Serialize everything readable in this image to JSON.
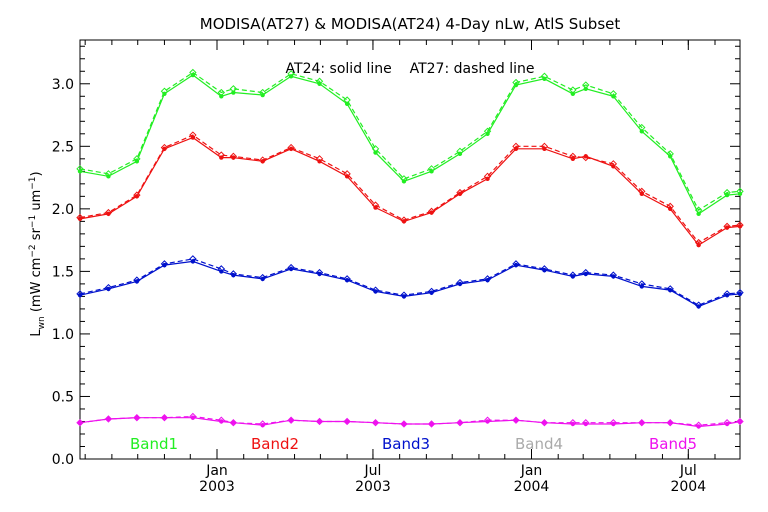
{
  "chart_data": {
    "type": "line",
    "title": "MODISA(AT27) & MODISA(AT24) 4-Day nLw, AtlS Subset",
    "annotation": "AT24: solid line    AT27: dashed line",
    "ylabel": "L_wn (mW cm^-2 sr^-1 um^-1)",
    "ylabel_parts": {
      "main": "L",
      "sub": "wn",
      "unit": "(mW cm",
      "e1": "−2",
      "mid1": " sr",
      "e2": "−1",
      "mid2": " um",
      "e3": "−1",
      "end": ")"
    },
    "ylim": [
      0,
      3.35
    ],
    "yticks": [
      0.0,
      0.5,
      1.0,
      1.5,
      2.0,
      2.5,
      3.0
    ],
    "ytick_labels": [
      "0.0",
      "0.5",
      "1.0",
      "1.5",
      "2.0",
      "2.5",
      "3.0"
    ],
    "xlim": [
      "2002-07-26",
      "2004-08-30"
    ],
    "xtick_labels": [
      {
        "date": "2003-01-01",
        "month": "Jan",
        "year": "2003"
      },
      {
        "date": "2003-07-01",
        "month": "Jul",
        "year": "2003"
      },
      {
        "date": "2004-01-01",
        "month": "Jan",
        "year": "2004"
      },
      {
        "date": "2004-07-01",
        "month": "Jul",
        "year": "2004"
      }
    ],
    "x": [
      "2002-07-26",
      "2002-08-28",
      "2002-09-30",
      "2002-11-01",
      "2002-12-04",
      "2003-01-06",
      "2003-01-20",
      "2003-02-23",
      "2003-03-28",
      "2003-04-30",
      "2003-06-01",
      "2003-07-04",
      "2003-08-06",
      "2003-09-07",
      "2003-10-10",
      "2003-11-11",
      "2003-12-14",
      "2004-01-16",
      "2004-02-18",
      "2004-03-04",
      "2004-04-05",
      "2004-05-08",
      "2004-06-10",
      "2004-07-13",
      "2004-08-15",
      "2004-08-30"
    ],
    "series": [
      {
        "name": "Band1",
        "color": "#22ee22",
        "dashed": [
          2.32,
          2.28,
          2.4,
          2.94,
          3.09,
          2.93,
          2.96,
          2.93,
          3.08,
          3.02,
          2.87,
          2.48,
          2.24,
          2.32,
          2.46,
          2.62,
          3.01,
          3.06,
          2.95,
          2.99,
          2.92,
          2.65,
          2.44,
          1.99,
          2.13,
          2.14
        ],
        "solid": [
          2.3,
          2.26,
          2.38,
          2.92,
          3.07,
          2.9,
          2.93,
          2.91,
          3.06,
          3.0,
          2.84,
          2.45,
          2.22,
          2.3,
          2.44,
          2.6,
          2.99,
          3.04,
          2.92,
          2.96,
          2.9,
          2.62,
          2.42,
          1.96,
          2.11,
          2.12
        ]
      },
      {
        "name": "Band2",
        "color": "#ee1111",
        "dashed": [
          1.93,
          1.97,
          2.11,
          2.49,
          2.59,
          2.43,
          2.42,
          2.39,
          2.49,
          2.4,
          2.28,
          2.03,
          1.91,
          1.98,
          2.13,
          2.26,
          2.5,
          2.5,
          2.42,
          2.41,
          2.36,
          2.14,
          2.02,
          1.73,
          1.86,
          1.87
        ],
        "solid": [
          1.92,
          1.96,
          2.1,
          2.48,
          2.57,
          2.41,
          2.41,
          2.38,
          2.48,
          2.38,
          2.26,
          2.01,
          1.9,
          1.97,
          2.12,
          2.24,
          2.48,
          2.48,
          2.4,
          2.42,
          2.34,
          2.12,
          2.0,
          1.71,
          1.85,
          1.86
        ]
      },
      {
        "name": "Band3",
        "color": "#0011cc",
        "dashed": [
          1.32,
          1.37,
          1.43,
          1.56,
          1.6,
          1.52,
          1.48,
          1.45,
          1.53,
          1.49,
          1.44,
          1.35,
          1.31,
          1.34,
          1.41,
          1.44,
          1.56,
          1.52,
          1.47,
          1.49,
          1.47,
          1.4,
          1.36,
          1.23,
          1.32,
          1.33
        ],
        "solid": [
          1.31,
          1.36,
          1.42,
          1.55,
          1.58,
          1.5,
          1.47,
          1.44,
          1.52,
          1.48,
          1.43,
          1.34,
          1.3,
          1.33,
          1.4,
          1.43,
          1.55,
          1.51,
          1.46,
          1.48,
          1.46,
          1.38,
          1.35,
          1.22,
          1.31,
          1.32
        ]
      },
      {
        "name": "Band4",
        "color": "#aaaaaa",
        "dashed": [],
        "solid": []
      },
      {
        "name": "Band5",
        "color": "#ee11ee",
        "dashed": [
          0.29,
          0.32,
          0.33,
          0.33,
          0.34,
          0.31,
          0.29,
          0.28,
          0.31,
          0.3,
          0.3,
          0.29,
          0.28,
          0.28,
          0.29,
          0.31,
          0.31,
          0.29,
          0.29,
          0.29,
          0.29,
          0.29,
          0.29,
          0.27,
          0.29,
          0.3
        ],
        "solid": [
          0.29,
          0.32,
          0.33,
          0.33,
          0.33,
          0.3,
          0.29,
          0.27,
          0.31,
          0.3,
          0.3,
          0.29,
          0.28,
          0.28,
          0.29,
          0.3,
          0.31,
          0.29,
          0.28,
          0.28,
          0.28,
          0.29,
          0.29,
          0.26,
          0.28,
          0.3
        ]
      }
    ],
    "legend_placement": "bottom, inside plot",
    "grid": false
  }
}
